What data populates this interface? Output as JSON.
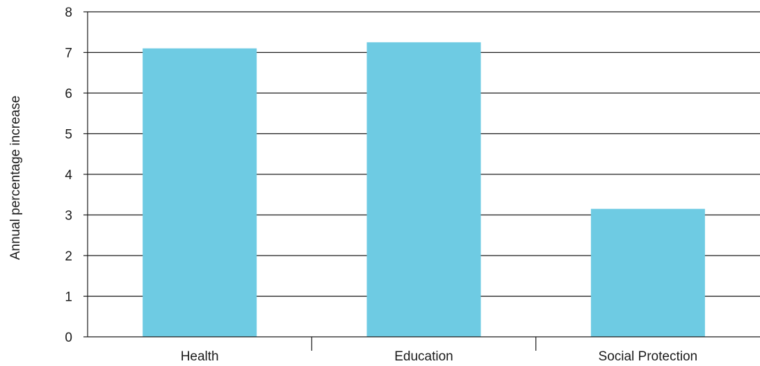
{
  "chart_data": {
    "type": "bar",
    "title": "",
    "xlabel": "",
    "ylabel": "Annual percentage increase",
    "categories": [
      "Health",
      "Education",
      "Social Protection"
    ],
    "values": [
      7.1,
      7.25,
      3.15
    ],
    "ylim": [
      0,
      8
    ],
    "yticks": [
      "0",
      "1",
      "2",
      "3",
      "4",
      "5",
      "6",
      "7",
      "8"
    ],
    "grid": true,
    "bar_color": "#6ecbe3"
  }
}
